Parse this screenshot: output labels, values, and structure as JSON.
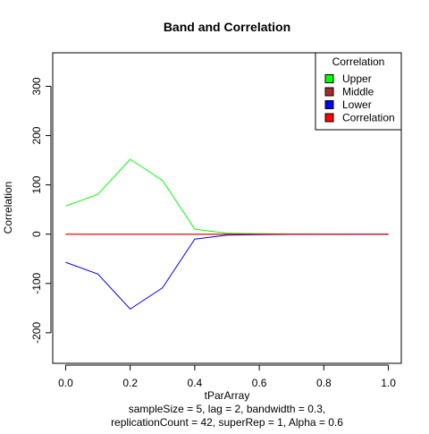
{
  "chart_data": {
    "type": "line",
    "title": "Band and Correlation",
    "xlabel": "tParArray",
    "ylabel": "Correlation",
    "subtitle_lines": [
      "sampleSize = 5, lag = 2, bandwidth = 0.3,",
      "replicationCount = 42, superRep = 1, Alpha = 0.6"
    ],
    "xlim": [
      -0.04,
      1.04
    ],
    "ylim": [
      -262,
      368
    ],
    "x_ticks": [
      0.0,
      0.2,
      0.4,
      0.6,
      0.8,
      1.0
    ],
    "x_tick_labels": [
      "0.0",
      "0.2",
      "0.4",
      "0.6",
      "0.8",
      "1.0"
    ],
    "y_ticks": [
      -200,
      -100,
      0,
      100,
      200,
      300
    ],
    "y_tick_labels": [
      "-200",
      "-100",
      "0",
      "100",
      "200",
      "300"
    ],
    "x": [
      0.0,
      0.1,
      0.2,
      0.3,
      0.4,
      0.5,
      0.6,
      0.7,
      0.8,
      0.9,
      1.0
    ],
    "series": [
      {
        "name": "Upper",
        "color": "#00ff00",
        "values": [
          57,
          81,
          152,
          109,
          10,
          2,
          1,
          0.5,
          0.3,
          0.2,
          0.1
        ]
      },
      {
        "name": "Middle",
        "color": "#a52a2a",
        "values": [
          0,
          0,
          0,
          0,
          0,
          0,
          0,
          0,
          0,
          0,
          0
        ]
      },
      {
        "name": "Lower",
        "color": "#0000ff",
        "values": [
          -57,
          -81,
          -152,
          -109,
          -10,
          -2,
          -1,
          -0.5,
          -0.3,
          -0.2,
          -0.1
        ]
      },
      {
        "name": "Correlation",
        "color": "#ff0000",
        "values": [
          0,
          0,
          0,
          0,
          0,
          0,
          0,
          0,
          0,
          0,
          0
        ]
      }
    ],
    "legend": {
      "title": "Correlation",
      "placement": "top-right",
      "entries": [
        "Upper",
        "Middle",
        "Lower",
        "Correlation"
      ]
    },
    "grid": false
  }
}
